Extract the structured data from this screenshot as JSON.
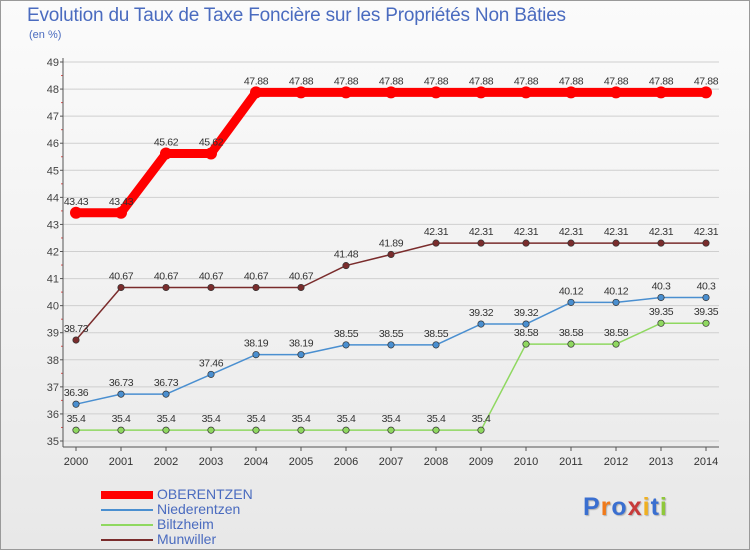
{
  "header": {
    "title": "Evolution du Taux de Taxe Foncière sur les Propriétés Non Bâties",
    "subtitle": "(en %)"
  },
  "chart_data": {
    "type": "line",
    "title": "Evolution du Taux de Taxe Foncière sur les Propriétés Non Bâties",
    "ylabel": "(en %)",
    "xlabel": "",
    "x": [
      "2000",
      "2001",
      "2002",
      "2003",
      "2004",
      "2005",
      "2006",
      "2007",
      "2008",
      "2009",
      "2010",
      "2011",
      "2012",
      "2013",
      "2014"
    ],
    "ylim": [
      35,
      49
    ],
    "yticks": [
      35,
      36,
      37,
      38,
      39,
      40,
      41,
      42,
      43,
      44,
      45,
      46,
      47,
      48,
      49
    ],
    "grid": "horizontal",
    "legend_position": "bottom-left",
    "series": [
      {
        "name": "OBERENTZEN",
        "color": "#ff0000",
        "emphasis": true,
        "values": [
          43.43,
          43.43,
          45.62,
          45.62,
          47.88,
          47.88,
          47.88,
          47.88,
          47.88,
          47.88,
          47.88,
          47.88,
          47.88,
          47.88,
          47.88
        ],
        "labels": [
          "43.43",
          "43.43",
          "45.62",
          "45.62",
          "47.88",
          "47.88",
          "47.88",
          "47.88",
          "47.88",
          "47.88",
          "47.88",
          "47.88",
          "47.88",
          "47.88",
          "47.88"
        ]
      },
      {
        "name": "Niederentzen",
        "color": "#4a8fd0",
        "emphasis": false,
        "values": [
          36.36,
          36.73,
          36.73,
          37.46,
          38.19,
          38.19,
          38.55,
          38.55,
          38.55,
          39.32,
          39.32,
          40.12,
          40.12,
          40.3,
          40.3
        ],
        "labels": [
          "36.36",
          "36.73",
          "36.73",
          "37.46",
          "38.19",
          "38.19",
          "38.55",
          "38.55",
          "38.55",
          "39.32",
          "39.32",
          "40.12",
          "40.12",
          "40.3",
          "40.3"
        ]
      },
      {
        "name": "Biltzheim",
        "color": "#8fd860",
        "emphasis": false,
        "values": [
          35.4,
          35.4,
          35.4,
          35.4,
          35.4,
          35.4,
          35.4,
          35.4,
          35.4,
          35.4,
          38.58,
          38.58,
          38.58,
          39.35,
          39.35
        ],
        "labels": [
          "35.4",
          "35.4",
          "35.4",
          "35.4",
          "35.4",
          "35.4",
          "35.4",
          "35.4",
          "35.4",
          "35.4",
          "38.58",
          "38.58",
          "38.58",
          "39.35",
          "39.35"
        ]
      },
      {
        "name": "Munwiller",
        "color": "#7a2c2c",
        "emphasis": false,
        "values": [
          38.73,
          40.67,
          40.67,
          40.67,
          40.67,
          40.67,
          41.48,
          41.89,
          42.31,
          42.31,
          42.31,
          42.31,
          42.31,
          42.31,
          42.31
        ],
        "labels": [
          "38.73",
          "40.67",
          "40.67",
          "40.67",
          "40.67",
          "40.67",
          "41.48",
          "41.89",
          "42.31",
          "42.31",
          "42.31",
          "42.31",
          "42.31",
          "42.31",
          "42.31"
        ]
      }
    ]
  },
  "legend": {
    "items": [
      {
        "label": "OBERENTZEN",
        "color": "#ff0000"
      },
      {
        "label": "Niederentzen",
        "color": "#4a8fd0"
      },
      {
        "label": "Biltzheim",
        "color": "#8fd860"
      },
      {
        "label": "Munwiller",
        "color": "#7a2c2c"
      }
    ]
  },
  "logo": {
    "text": "Proxiti",
    "letter_colors": [
      "#3a6fd0",
      "#f07a1a",
      "#3a6fd0",
      "#c83a3a",
      "#f0b020",
      "#3a6fd0",
      "#8fc83a"
    ]
  }
}
